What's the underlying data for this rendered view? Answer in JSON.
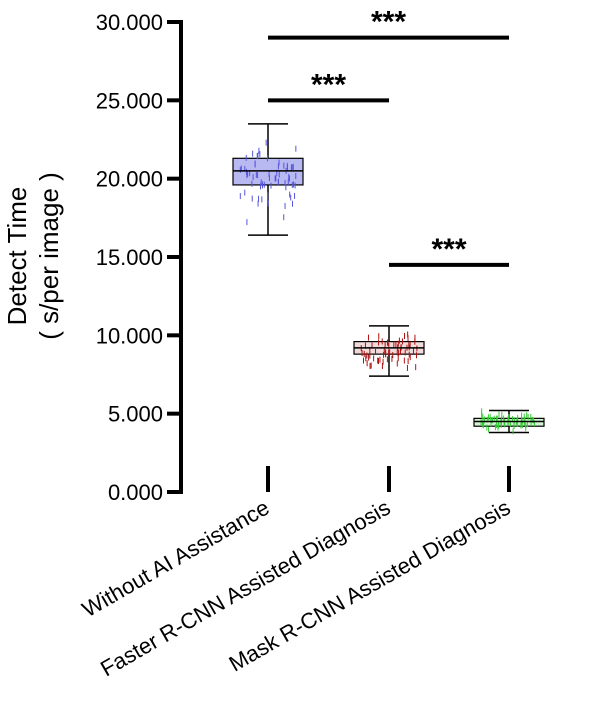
{
  "chart_data": {
    "type": "box",
    "ylabel": "Detect Time",
    "ylabel_unit": "( s/per image )",
    "ylim": [
      0,
      30
    ],
    "yticks": [
      {
        "value": 0,
        "label": "0.000"
      },
      {
        "value": 5,
        "label": "5.000"
      },
      {
        "value": 10,
        "label": "10.000"
      },
      {
        "value": 15,
        "label": "15.000"
      },
      {
        "value": 20,
        "label": "20.000"
      },
      {
        "value": 25,
        "label": "25.000"
      },
      {
        "value": 30,
        "label": "30.000"
      }
    ],
    "categories": [
      "Without AI Assistance",
      "Faster R-CNN Assisted Diagnosis",
      "Mask R-CNN Assisted Diagnosis"
    ],
    "series": [
      {
        "min": 16.4,
        "q1": 19.6,
        "median": 20.5,
        "q3": 21.3,
        "max": 23.5,
        "box_color": "#b9b9f2",
        "point_color": "#5555dd"
      },
      {
        "min": 7.4,
        "q1": 8.8,
        "median": 9.2,
        "q3": 9.6,
        "max": 10.6,
        "box_color": "#f0dada",
        "point_color": "#b01010"
      },
      {
        "min": 3.8,
        "q1": 4.2,
        "median": 4.5,
        "q3": 4.7,
        "max": 5.2,
        "box_color": "#d6f5d6",
        "point_color": "#33cc33"
      }
    ],
    "significance": [
      {
        "from": 0,
        "to": 2,
        "y": 29.0,
        "label": "***"
      },
      {
        "from": 0,
        "to": 1,
        "y": 25.0,
        "label": "***"
      },
      {
        "from": 1,
        "to": 2,
        "y": 14.5,
        "label": "***"
      }
    ]
  }
}
